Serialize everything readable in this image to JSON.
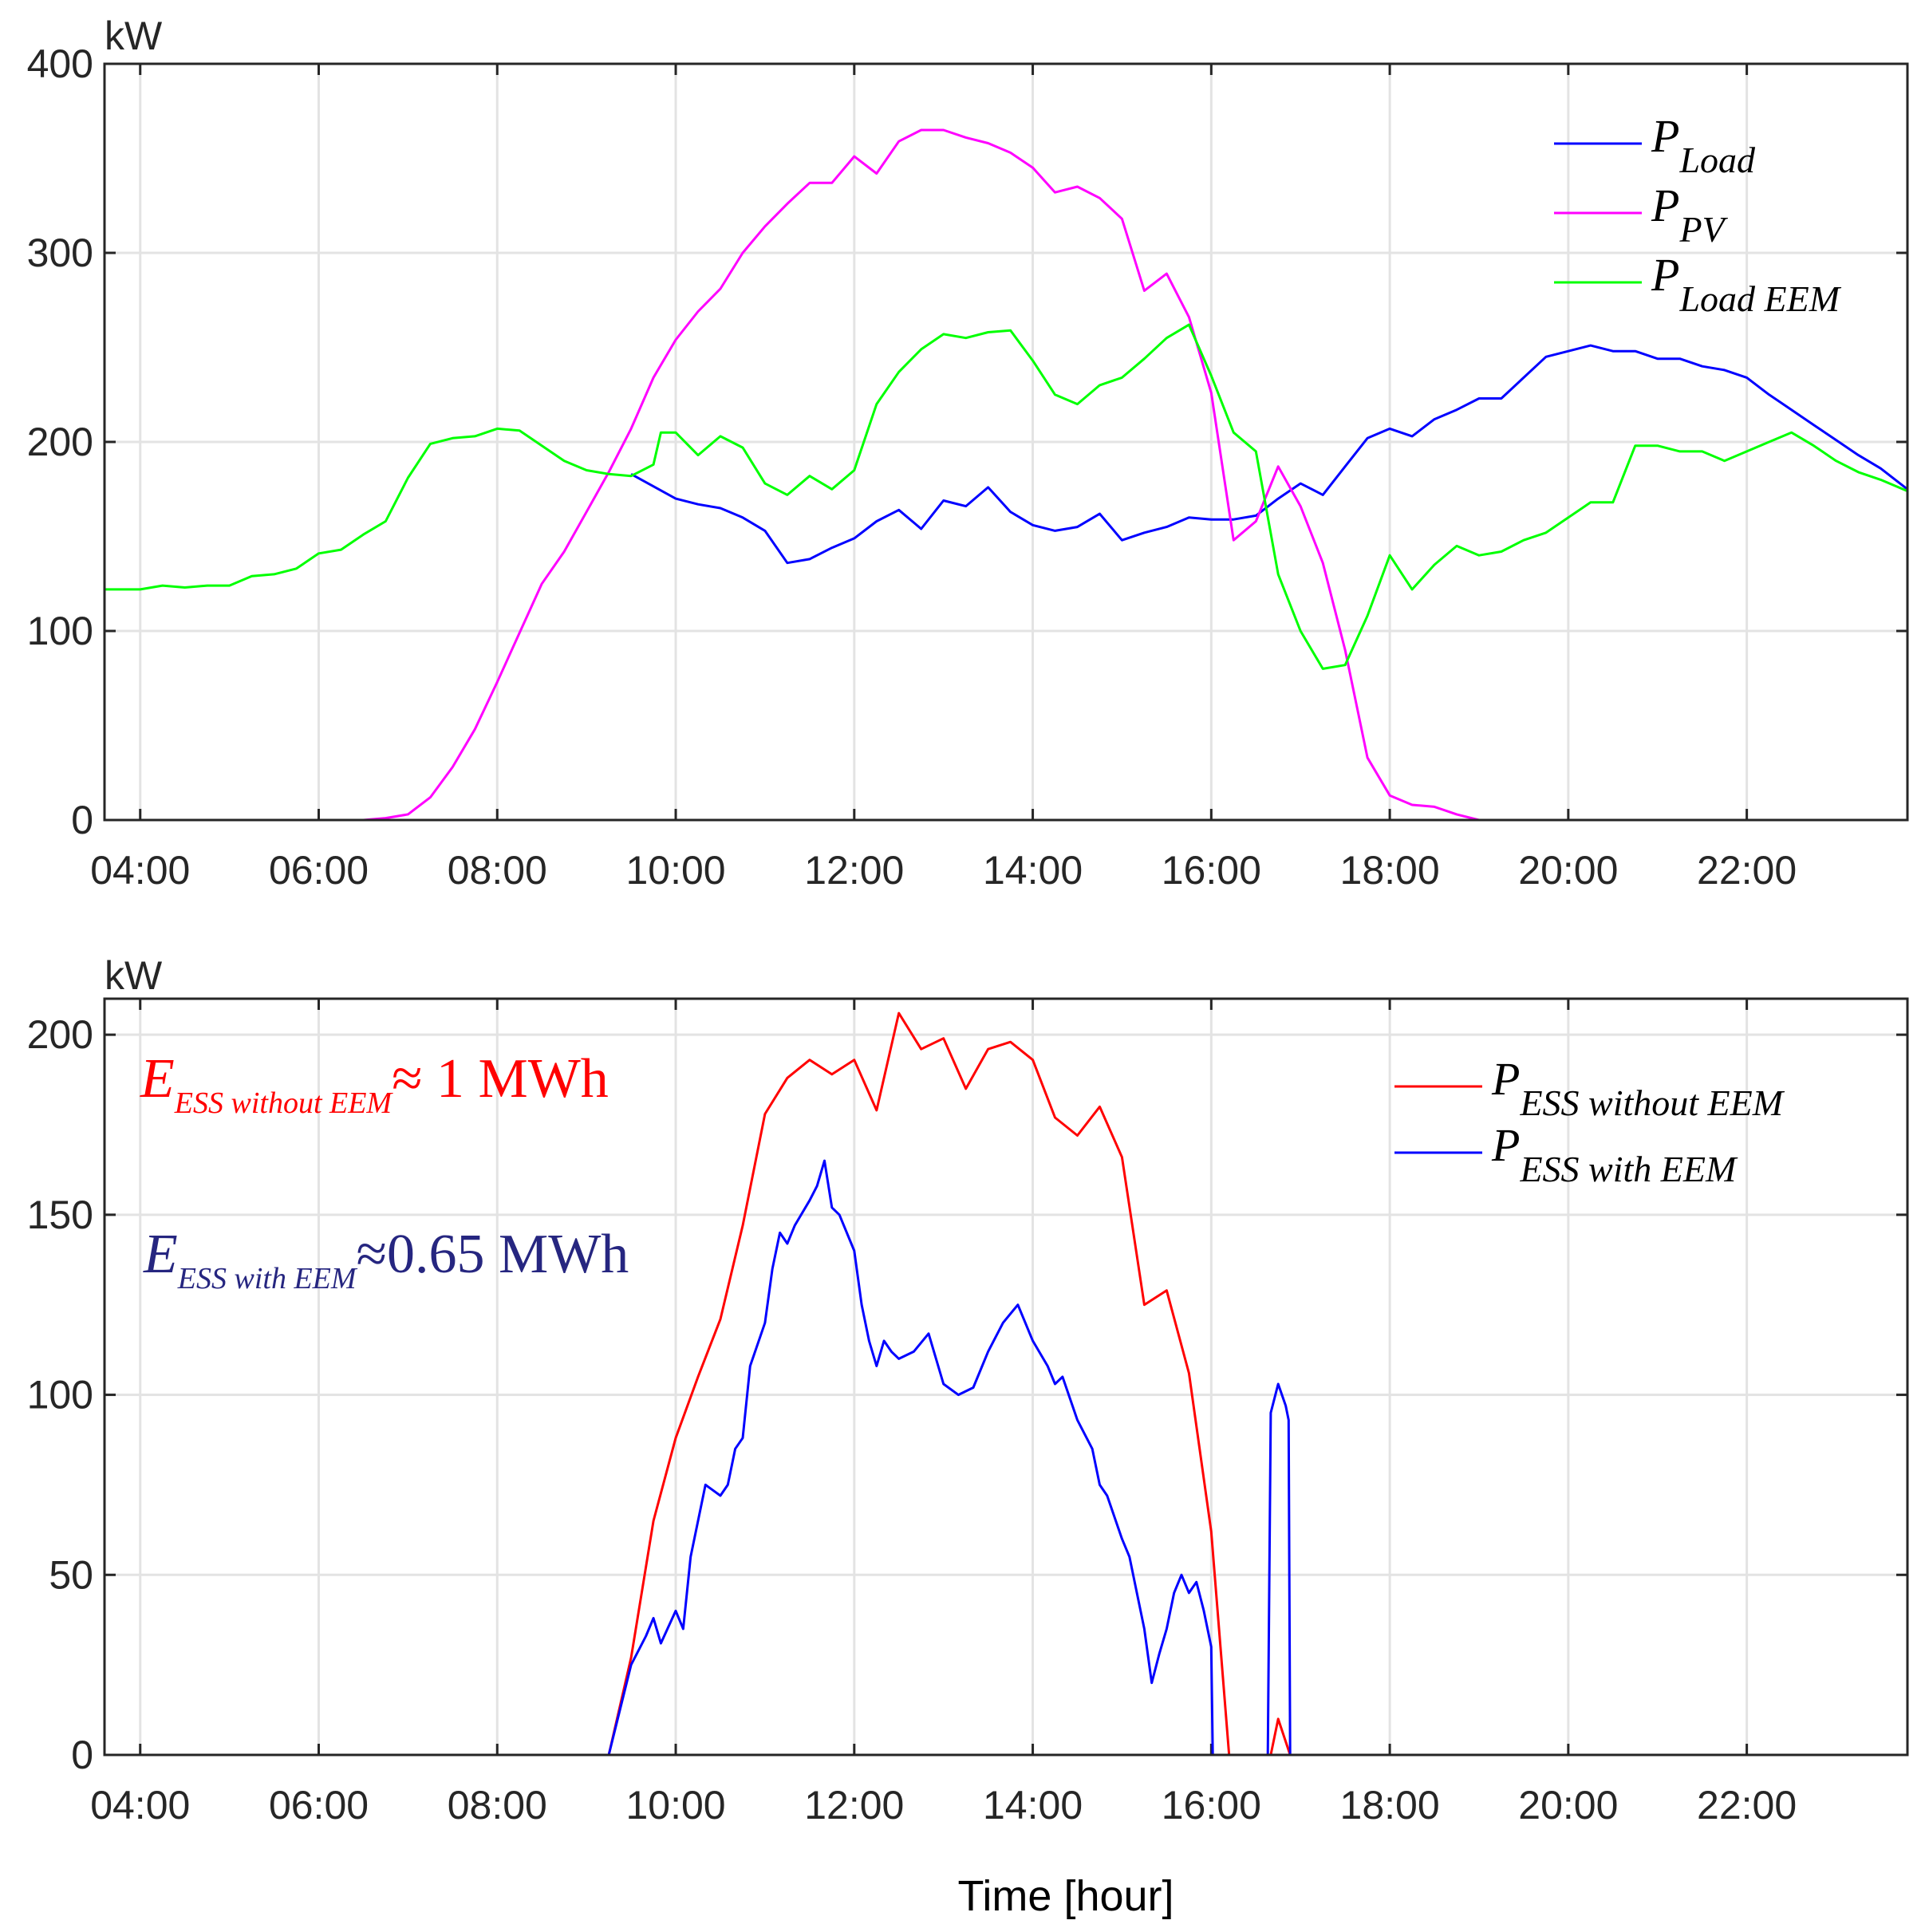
{
  "chart_data": [
    {
      "type": "line",
      "ylabel": "kW",
      "ylim": [
        0,
        400
      ],
      "yticks": [
        0,
        100,
        200,
        300,
        400
      ],
      "xlim": [
        "03:36",
        "23:48"
      ],
      "xticks": [
        "04:00",
        "06:00",
        "08:00",
        "10:00",
        "12:00",
        "14:00",
        "16:00",
        "18:00",
        "20:00",
        "22:00"
      ],
      "grid": true,
      "legend_position": "top-right",
      "series": [
        {
          "name": "P_Load",
          "label_main": "P",
          "label_sub": "Load",
          "color": "#0000ff",
          "x": [
            "09:30",
            "10:00",
            "10:15",
            "10:30",
            "10:45",
            "11:00",
            "11:15",
            "11:30",
            "11:45",
            "12:00",
            "12:15",
            "12:30",
            "12:45",
            "13:00",
            "13:15",
            "13:30",
            "13:45",
            "14:00",
            "14:15",
            "14:30",
            "14:45",
            "15:00",
            "15:15",
            "15:30",
            "15:45",
            "16:00",
            "16:15",
            "16:30",
            "16:45",
            "17:00",
            "17:15",
            "17:30",
            "17:45",
            "18:00",
            "18:15",
            "18:30",
            "18:45",
            "19:00",
            "19:15",
            "19:30",
            "19:45",
            "20:00",
            "20:15",
            "20:30",
            "20:45",
            "21:00",
            "21:15",
            "21:30",
            "21:45",
            "22:00",
            "22:15",
            "22:30",
            "22:45",
            "23:00",
            "23:15",
            "23:30",
            "23:48"
          ],
          "y": [
            183,
            170,
            167,
            165,
            160,
            153,
            136,
            138,
            144,
            149,
            158,
            164,
            154,
            169,
            166,
            176,
            163,
            156,
            153,
            155,
            162,
            148,
            152,
            155,
            160,
            159,
            159,
            161,
            170,
            178,
            172,
            187,
            202,
            207,
            203,
            212,
            217,
            223,
            223,
            234,
            245,
            248,
            251,
            248,
            248,
            244,
            244,
            240,
            238,
            234,
            225,
            217,
            209,
            201,
            193,
            186,
            175
          ]
        },
        {
          "name": "P_PV",
          "label_main": "P",
          "label_sub": "PV",
          "color": "#ff00ff",
          "x": [
            "03:36",
            "06:30",
            "06:45",
            "07:00",
            "07:15",
            "07:30",
            "07:45",
            "08:00",
            "08:15",
            "08:30",
            "08:45",
            "09:00",
            "09:15",
            "09:30",
            "09:45",
            "10:00",
            "10:15",
            "10:30",
            "10:45",
            "11:00",
            "11:15",
            "11:30",
            "11:45",
            "12:00",
            "12:15",
            "12:30",
            "12:45",
            "13:00",
            "13:15",
            "13:30",
            "13:45",
            "14:00",
            "14:15",
            "14:30",
            "14:45",
            "15:00",
            "15:15",
            "15:30",
            "15:45",
            "16:00",
            "16:15",
            "16:30",
            "16:45",
            "17:00",
            "17:15",
            "17:30",
            "17:45",
            "18:00",
            "18:15",
            "18:30",
            "18:45",
            "19:00",
            "19:15",
            "23:48"
          ],
          "y": [
            0,
            0,
            1,
            3,
            12,
            28,
            48,
            73,
            99,
            125,
            142,
            163,
            184,
            207,
            234,
            254,
            269,
            281,
            300,
            314,
            326,
            337,
            337,
            351,
            342,
            359,
            365,
            365,
            361,
            358,
            353,
            345,
            332,
            335,
            329,
            318,
            280,
            289,
            266,
            226,
            148,
            158,
            187,
            166,
            136,
            90,
            33,
            13,
            8,
            7,
            3,
            0,
            0,
            0
          ]
        },
        {
          "name": "P_Load EEM",
          "label_main": "P",
          "label_sub": "Load EEM",
          "color": "#00ff00",
          "x": [
            "03:36",
            "04:00",
            "04:15",
            "04:30",
            "04:45",
            "05:00",
            "05:15",
            "05:30",
            "05:45",
            "06:00",
            "06:15",
            "06:30",
            "06:45",
            "07:00",
            "07:15",
            "07:30",
            "07:45",
            "08:00",
            "08:15",
            "08:30",
            "08:45",
            "09:00",
            "09:15",
            "09:30",
            "09:45",
            "09:50",
            "10:00",
            "10:15",
            "10:30",
            "10:45",
            "11:00",
            "11:15",
            "11:30",
            "11:45",
            "12:00",
            "12:15",
            "12:30",
            "12:45",
            "13:00",
            "13:15",
            "13:30",
            "13:45",
            "14:00",
            "14:15",
            "14:30",
            "14:45",
            "15:00",
            "15:15",
            "15:30",
            "15:45",
            "16:00",
            "16:15",
            "16:30",
            "16:45",
            "17:00",
            "17:15",
            "17:30",
            "17:45",
            "18:00",
            "18:15",
            "18:30",
            "18:45",
            "19:00",
            "19:15",
            "19:30",
            "19:45",
            "20:00",
            "20:15",
            "20:30",
            "20:45",
            "21:00",
            "21:15",
            "21:30",
            "21:45",
            "22:00",
            "22:15",
            "22:30",
            "22:45",
            "23:00",
            "23:15",
            "23:30",
            "23:48"
          ],
          "y": [
            122,
            122,
            124,
            123,
            124,
            124,
            129,
            130,
            133,
            141,
            143,
            151,
            158,
            181,
            199,
            202,
            203,
            207,
            206,
            198,
            190,
            185,
            183,
            182,
            188,
            205,
            205,
            193,
            203,
            197,
            178,
            172,
            182,
            175,
            185,
            220,
            237,
            249,
            257,
            255,
            258,
            259,
            243,
            225,
            220,
            230,
            234,
            244,
            255,
            262,
            235,
            205,
            195,
            130,
            100,
            80,
            82,
            108,
            140,
            122,
            135,
            145,
            140,
            142,
            148,
            152,
            160,
            168,
            168,
            198,
            198,
            195,
            195,
            190,
            195,
            200,
            205,
            198,
            190,
            184,
            180,
            174
          ]
        }
      ]
    },
    {
      "type": "line",
      "ylabel": "kW",
      "ylim": [
        0,
        210
      ],
      "yticks": [
        0,
        50,
        100,
        150,
        200
      ],
      "xlim": [
        "03:36",
        "23:48"
      ],
      "xticks": [
        "04:00",
        "06:00",
        "08:00",
        "10:00",
        "12:00",
        "14:00",
        "16:00",
        "18:00",
        "20:00",
        "22:00"
      ],
      "xlabel": "Time [hour]",
      "grid": true,
      "legend_position": "top-right",
      "series": [
        {
          "name": "P_ESS without EEM",
          "label_main": "P",
          "label_sub": "ESS without EEM",
          "color": "#ff0000",
          "x": [
            "03:36",
            "09:15",
            "09:30",
            "09:45",
            "10:00",
            "10:15",
            "10:30",
            "10:45",
            "11:00",
            "11:15",
            "11:30",
            "11:45",
            "12:00",
            "12:15",
            "12:30",
            "12:45",
            "13:00",
            "13:15",
            "13:30",
            "13:45",
            "14:00",
            "14:15",
            "14:30",
            "14:45",
            "15:00",
            "15:15",
            "15:30",
            "15:45",
            "16:00",
            "16:12",
            "16:40",
            "16:45",
            "16:53",
            "23:48"
          ],
          "y": [
            0,
            0,
            27,
            65,
            88,
            105,
            121,
            147,
            178,
            188,
            193,
            189,
            193,
            179,
            206,
            196,
            199,
            185,
            196,
            198,
            193,
            177,
            172,
            180,
            166,
            125,
            129,
            106,
            62,
            0,
            0,
            10,
            0,
            0
          ]
        },
        {
          "name": "P_ESS with EEM",
          "label_main": "P",
          "label_sub": "ESS with EEM",
          "color": "#0000ff",
          "x": [
            "03:36",
            "09:15",
            "09:30",
            "09:40",
            "09:45",
            "09:50",
            "10:00",
            "10:05",
            "10:10",
            "10:15",
            "10:20",
            "10:30",
            "10:35",
            "10:40",
            "10:45",
            "10:50",
            "11:00",
            "11:05",
            "11:10",
            "11:15",
            "11:20",
            "11:30",
            "11:35",
            "11:40",
            "11:45",
            "11:50",
            "12:00",
            "12:05",
            "12:10",
            "12:15",
            "12:20",
            "12:25",
            "12:30",
            "12:40",
            "12:50",
            "13:00",
            "13:10",
            "13:20",
            "13:30",
            "13:40",
            "13:50",
            "14:00",
            "14:10",
            "14:15",
            "14:20",
            "14:30",
            "14:40",
            "14:45",
            "14:50",
            "15:00",
            "15:05",
            "15:10",
            "15:15",
            "15:20",
            "15:25",
            "15:30",
            "15:35",
            "15:40",
            "15:45",
            "15:50",
            "15:55",
            "16:00",
            "16:01",
            "16:38",
            "16:40",
            "16:45",
            "16:50",
            "16:52",
            "16:53",
            "23:48"
          ],
          "y": [
            0,
            0,
            25,
            33,
            38,
            31,
            40,
            35,
            55,
            65,
            75,
            72,
            75,
            85,
            88,
            108,
            120,
            135,
            145,
            142,
            147,
            154,
            158,
            165,
            152,
            150,
            140,
            125,
            115,
            108,
            115,
            112,
            110,
            112,
            117,
            103,
            100,
            102,
            112,
            120,
            125,
            115,
            108,
            103,
            105,
            93,
            85,
            75,
            72,
            60,
            55,
            45,
            35,
            20,
            28,
            35,
            45,
            50,
            45,
            48,
            40,
            30,
            0,
            0,
            95,
            103,
            97,
            93,
            0,
            0
          ]
        }
      ],
      "annotations": [
        {
          "main": "E",
          "sub": "ESS without EEM",
          "text": "≈ 1 MWh",
          "color": "#ff0000"
        },
        {
          "main": "E",
          "sub": "ESS with EEM",
          "text": "≈0.65 MWh",
          "color": "#262680"
        }
      ]
    }
  ]
}
